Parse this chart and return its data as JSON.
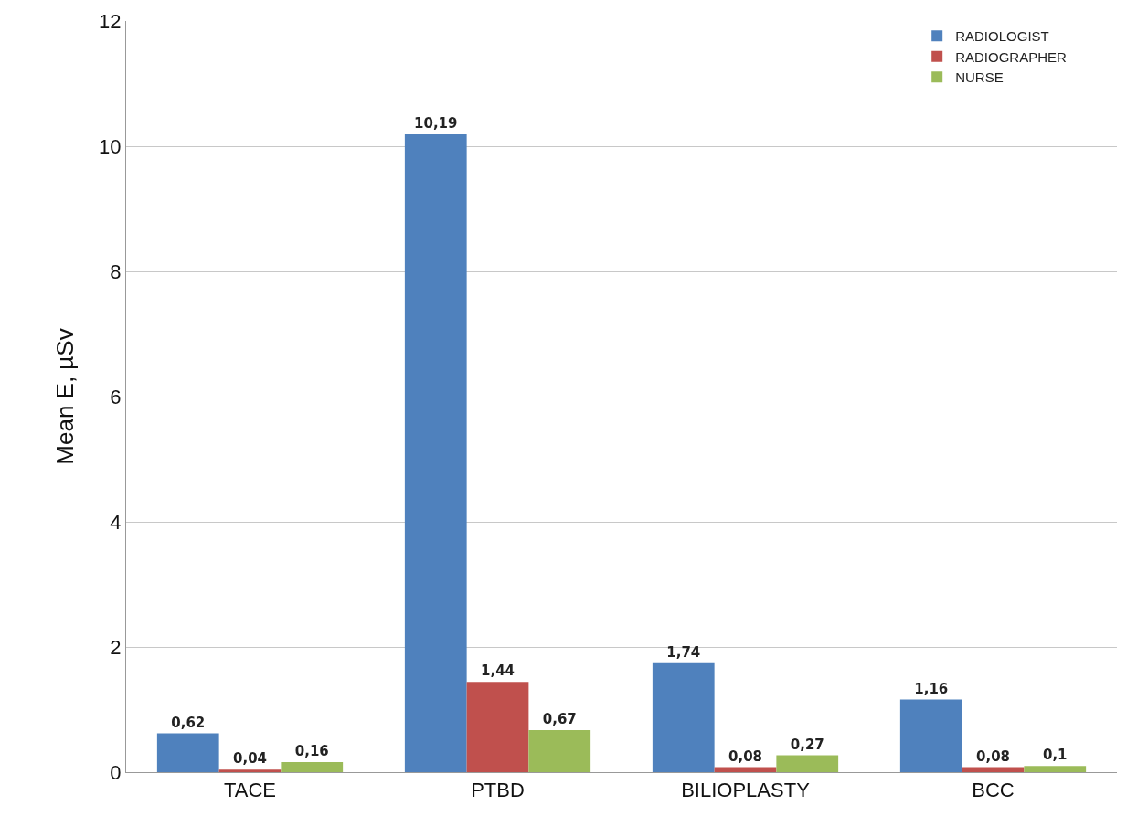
{
  "chart_data": {
    "type": "bar",
    "ylabel": "Mean E, µSv",
    "categories": [
      "TACE",
      "PTBD",
      "BILIOPLASTY",
      "BCC"
    ],
    "series": [
      {
        "name": "RADIOLOGIST",
        "color": "#4f81bd",
        "values": [
          0.62,
          10.19,
          1.74,
          1.16
        ],
        "value_labels": [
          "0,62",
          "10,19",
          "1,74",
          "1,16"
        ]
      },
      {
        "name": "RADIOGRAPHER",
        "color": "#c0504d",
        "values": [
          0.04,
          1.44,
          0.08,
          0.08
        ],
        "value_labels": [
          "0,04",
          "1,44",
          "0,08",
          "0,08"
        ]
      },
      {
        "name": "NURSE",
        "color": "#9bbb59",
        "values": [
          0.16,
          0.67,
          0.27,
          0.1
        ],
        "value_labels": [
          "0,16",
          "0,67",
          "0,27",
          "0,1"
        ]
      }
    ],
    "ylim": [
      0,
      12
    ],
    "yticks": [
      0,
      2,
      4,
      6,
      8,
      10,
      12
    ],
    "grid": "y",
    "legend": "top right"
  }
}
